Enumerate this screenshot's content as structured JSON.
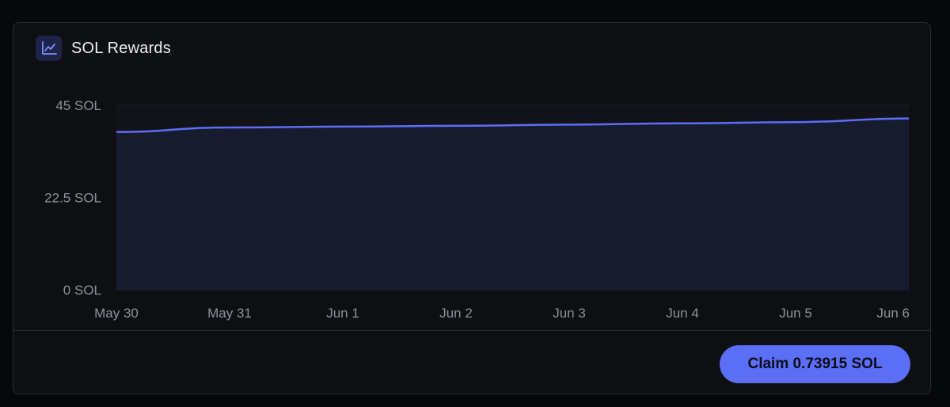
{
  "card": {
    "title": "SOL Rewards",
    "icon": "line-chart-icon"
  },
  "chart_data": {
    "type": "area",
    "title": "SOL Rewards",
    "xlabel": "",
    "ylabel": "",
    "x_ticks": [
      "May 30",
      "May 31",
      "Jun 1",
      "Jun 2",
      "Jun 3",
      "Jun 4",
      "Jun 5",
      "Jun 6"
    ],
    "y_ticks": [
      "0 SOL",
      "22.5 SOL",
      "45 SOL"
    ],
    "ylim": [
      0,
      45
    ],
    "grid": true,
    "series": [
      {
        "x": [
          "May 30",
          "May 31",
          "Jun 1",
          "Jun 2",
          "Jun 3",
          "Jun 4",
          "Jun 5",
          "Jun 6"
        ],
        "values": [
          38.5,
          39.6,
          39.8,
          40.0,
          40.3,
          40.6,
          40.9,
          41.8
        ]
      }
    ],
    "colors": {
      "line": "#5b6ef6",
      "fill": "#171b2e",
      "grid": "#23252c",
      "tick_text": "#8e919b"
    }
  },
  "actions": {
    "claim_label": "Claim 0.73915 SOL"
  }
}
